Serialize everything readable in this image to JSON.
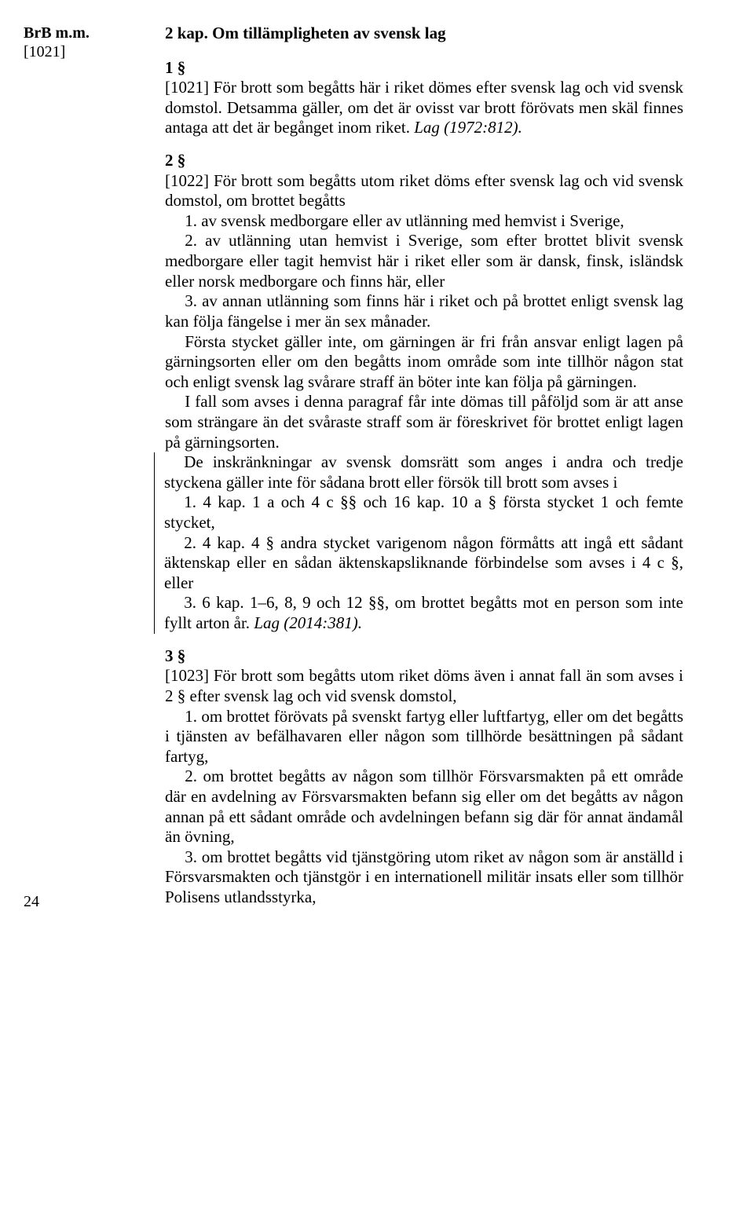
{
  "margin": {
    "header": "BrB m.m.",
    "ref": "[1021]"
  },
  "page_number": "24",
  "chapter_title": "2 kap. Om tillämpligheten av svensk lag",
  "s1": {
    "head": "1 §",
    "p1": "[1021] För brott som begåtts här i riket dömes efter svensk lag och vid svensk domstol. Detsamma gäller, om det är ovisst var brott förövats men skäl finnes antaga att det är begånget inom riket. ",
    "law": "Lag (1972:812)."
  },
  "s2": {
    "head": "2 §",
    "p1": "[1022] För brott som begåtts utom riket döms efter svensk lag och vid svensk domstol, om brottet begåtts",
    "li1": "1. av svensk medborgare eller av utlänning med hemvist i Sverige,",
    "li2": "2. av utlänning utan hemvist i Sverige, som efter brottet blivit svensk medborgare eller tagit hemvist här i riket eller som är dansk, finsk, isländsk eller norsk medborgare och finns här, eller",
    "li3": "3. av annan utlänning som finns här i riket och på brottet enligt svensk lag kan följa fängelse i mer än sex månader.",
    "p2": "Första stycket gäller inte, om gärningen är fri från ansvar enligt lagen på gärningsorten eller om den begåtts inom område som inte tillhör någon stat och enligt svensk lag svårare straff än böter inte kan följa på gärningen.",
    "p3": "I fall som avses i denna paragraf får inte dömas till påföljd som är att anse som strängare än det svåraste straff som är föreskrivet för brottet enligt lagen på gärningsorten.",
    "p4": "De inskränkningar av svensk domsrätt som anges i andra och tredje styckena gäller inte för sådana brott eller försök till brott som avses i",
    "bli1": "1. 4 kap. 1 a och 4 c §§ och 16 kap. 10 a § första stycket 1 och femte stycket,",
    "bli2": "2. 4 kap. 4 § andra stycket varigenom någon förmåtts att ingå ett sådant äktenskap eller en sådan äktenskapsliknande förbindelse som avses i 4 c §, eller",
    "bli3_a": "3. 6 kap. 1–6, 8, 9 och 12 §§, om brottet begåtts mot en person som inte fyllt arton år. ",
    "bli3_law": "Lag (2014:381)."
  },
  "s3": {
    "head": "3 §",
    "p1": "[1023] För brott som begåtts utom riket döms även i annat fall än som avses i 2 § efter svensk lag och vid svensk domstol,",
    "li1": "1. om brottet förövats på svenskt fartyg eller luftfartyg, eller om det begåtts i tjänsten av befälhavaren eller någon som tillhörde besättningen på sådant fartyg,",
    "li2": "2. om brottet begåtts av någon som tillhör Försvarsmakten på ett område där en avdelning av Försvarsmakten befann sig eller om det begåtts av någon annan på ett sådant område och avdelningen befann sig där för annat ändamål än övning,",
    "li3": "3. om brottet begåtts vid tjänstgöring utom riket av någon som är anställd i Försvarsmakten och tjänstgör i en internationell militär insats eller som tillhör Polisens utlandsstyrka,"
  }
}
